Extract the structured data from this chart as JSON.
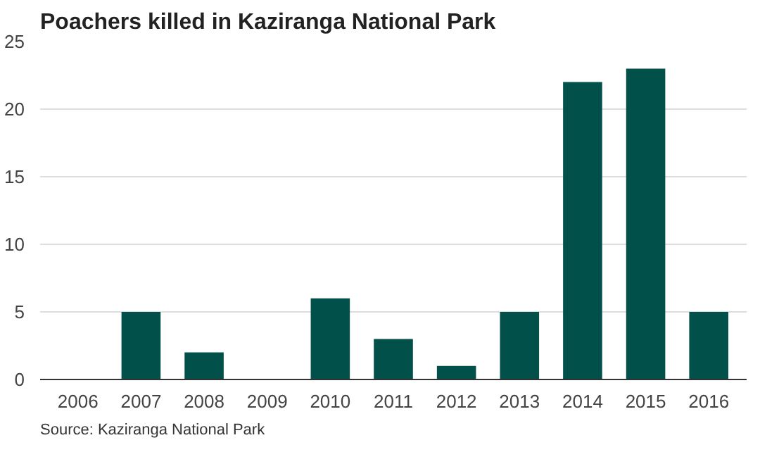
{
  "chart_data": {
    "type": "bar",
    "title": "Poachers killed in Kaziranga National Park",
    "categories": [
      "2006",
      "2007",
      "2008",
      "2009",
      "2010",
      "2011",
      "2012",
      "2013",
      "2014",
      "2015",
      "2016"
    ],
    "values": [
      0,
      5,
      2,
      0,
      6,
      3,
      1,
      5,
      22,
      23,
      5
    ],
    "color": "#01504a",
    "ylim": [
      0,
      25
    ],
    "yticks": [
      0,
      5,
      10,
      15,
      20,
      25
    ],
    "grid": "y",
    "annotations": [
      "Source: Kaziranga National Park"
    ]
  }
}
